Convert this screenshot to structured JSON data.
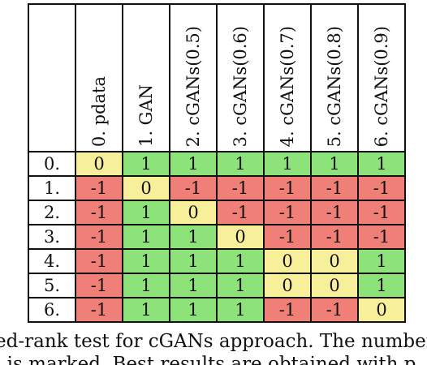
{
  "table": {
    "columns": [
      "0. pdata",
      "1. GAN",
      "2. cGANs(0.5)",
      "3. cGANs(0.6)",
      "4. cGANs(0.7)",
      "5. cGANs(0.8)",
      "6. cGANs(0.9)"
    ],
    "rows": [
      {
        "label": "0.",
        "values": [
          "0",
          "1",
          "1",
          "1",
          "1",
          "1",
          "1"
        ]
      },
      {
        "label": "1.",
        "values": [
          "-1",
          "0",
          "-1",
          "-1",
          "-1",
          "-1",
          "-1"
        ]
      },
      {
        "label": "2.",
        "values": [
          "-1",
          "1",
          "0",
          "-1",
          "-1",
          "-1",
          "-1"
        ]
      },
      {
        "label": "3.",
        "values": [
          "-1",
          "1",
          "1",
          "0",
          "-1",
          "-1",
          "-1"
        ]
      },
      {
        "label": "4.",
        "values": [
          "-1",
          "1",
          "1",
          "1",
          "0",
          "0",
          "1"
        ]
      },
      {
        "label": "5.",
        "values": [
          "-1",
          "1",
          "1",
          "1",
          "0",
          "0",
          "1"
        ]
      },
      {
        "label": "6.",
        "values": [
          "-1",
          "1",
          "1",
          "1",
          "-1",
          "-1",
          "0"
        ]
      }
    ],
    "colors": {
      "positive": "#8ee27a",
      "negative": "#f07f78",
      "zero": "#f8ef9a"
    }
  },
  "caption": {
    "line1": "ed-rank test for cGANs approach. The number b",
    "line2": "l is marked. Best results are obtained with p"
  }
}
